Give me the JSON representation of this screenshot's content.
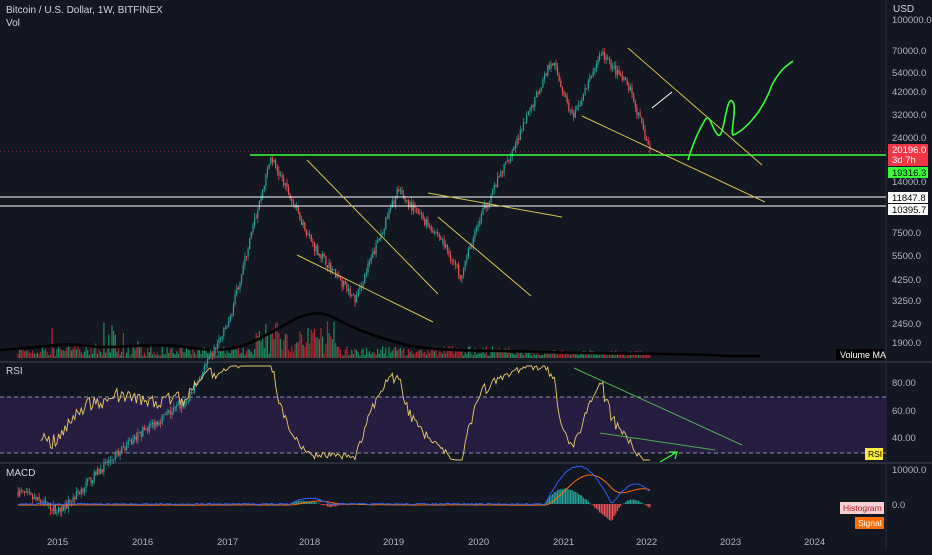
{
  "header": {
    "title": "Bitcoin / U.S. Dollar, 1W, BITFINEX",
    "volume_label": "Vol",
    "currency": "USD"
  },
  "price_pane": {
    "y_ticks": [
      "100000.0",
      "70000.0",
      "54000.0",
      "42000.0",
      "32000.0",
      "24000.0",
      "14000.0",
      "7500.0",
      "5500.0",
      "4250.0",
      "3250.0",
      "2450.0",
      "1900.0"
    ],
    "last_price": "20196.0",
    "countdown": "3d 7h",
    "green_level": "19316.3",
    "level_1": "11847.8",
    "level_2": "10395.7",
    "volume_ma_label": "Volume MA"
  },
  "rsi_pane": {
    "label": "RSI",
    "y_ticks": [
      "80.00",
      "60.00",
      "40.00"
    ],
    "badge": "RSI"
  },
  "macd_pane": {
    "label": "MACD",
    "y_ticks": [
      "10000.0",
      "0.0"
    ],
    "histogram_badge": "Histogram",
    "signal_badge": "Signal"
  },
  "x_axis": {
    "years": [
      "2015",
      "2016",
      "2017",
      "2018",
      "2019",
      "2020",
      "2021",
      "2022",
      "2023",
      "2024"
    ]
  },
  "chart_data": {
    "type": "line",
    "x": [
      "2014-12",
      "2015-06",
      "2015-12",
      "2016-06",
      "2016-12",
      "2017-06",
      "2017-12",
      "2018-06",
      "2018-12",
      "2019-06",
      "2019-12",
      "2020-03",
      "2020-06",
      "2020-12",
      "2021-04",
      "2021-07",
      "2021-11",
      "2022-03",
      "2022-06"
    ],
    "series": [
      {
        "values": [
          320,
          250,
          430,
          680,
          960,
          2500,
          19000,
          6500,
          3300,
          12500,
          7200,
          4500,
          9400,
          28000,
          63000,
          30000,
          68000,
          44000,
          20196
        ]
      }
    ],
    "ylim": [
      1900,
      100000
    ]
  },
  "colors": {
    "background": "#131722",
    "up": "#26a69a",
    "down": "#ef5350",
    "trendline": "#d4c24a",
    "support": "#39ff39",
    "rsi": "#e8c96a",
    "rsi_band": "#2a1e45",
    "macd_line": "#2962ff",
    "signal_line": "#ff6d00"
  }
}
